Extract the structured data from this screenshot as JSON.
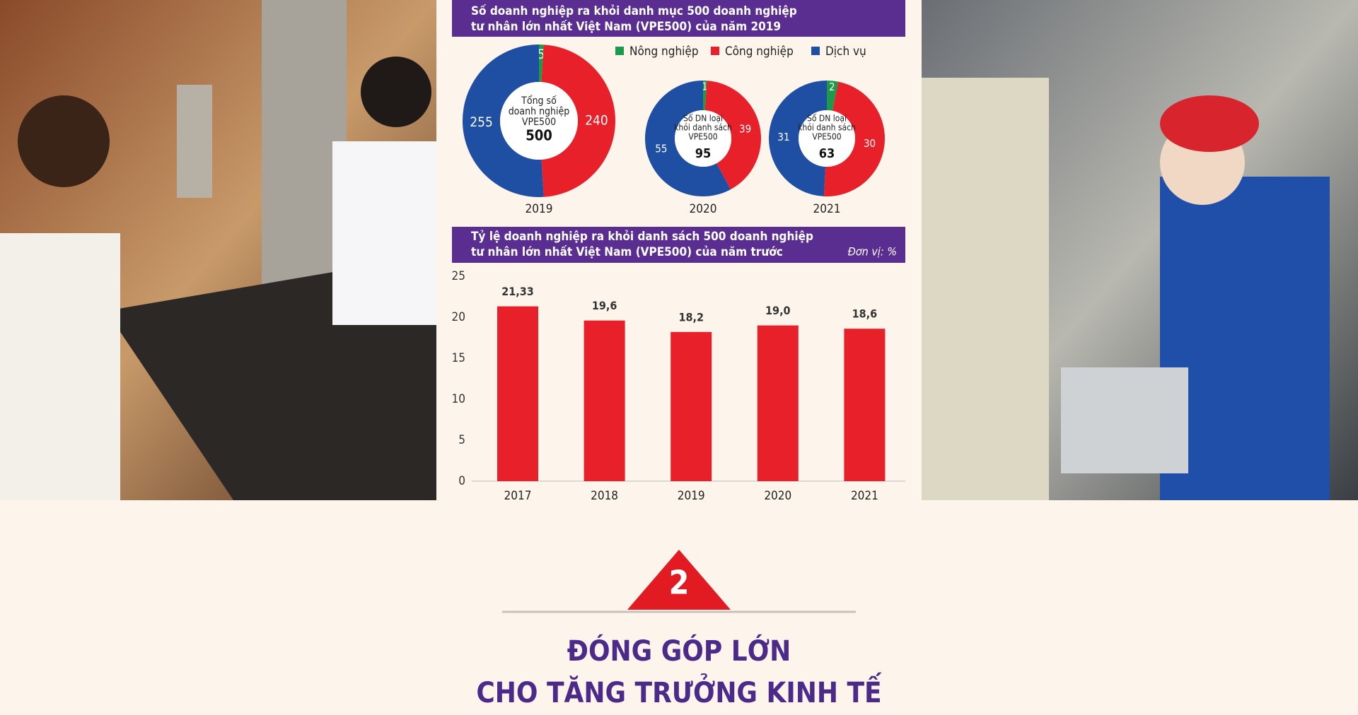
{
  "chart_data": [
    {
      "type": "pie",
      "title": [
        "Số doanh nghiệp ra khỏi danh mục 500 doanh nghiệp",
        "tư nhân lớn nhất Việt Nam (VPE500) của năm 2019"
      ],
      "label": "2019",
      "categories": [
        "Nông nghiệp",
        "Công nghiệp",
        "Dịch vụ"
      ],
      "values": [
        5,
        240,
        255
      ],
      "colors": [
        "#1a9a4a",
        "#e8202a",
        "#1e4fa3"
      ],
      "center_label": [
        "Tổng số",
        "doanh nghiệp",
        "VPE500"
      ],
      "total": 500
    },
    {
      "type": "pie",
      "label": "2020",
      "values": [
        1,
        39,
        55
      ],
      "colors": [
        "#1a9a4a",
        "#e8202a",
        "#1e4fa3"
      ],
      "center_label": [
        "Số DN loại",
        "khỏi danh sách",
        "VPE500"
      ],
      "total": 95
    },
    {
      "type": "pie",
      "label": "2021",
      "values": [
        2,
        30,
        31
      ],
      "colors": [
        "#1a9a4a",
        "#e8202a",
        "#1e4fa3"
      ],
      "center_label": [
        "Số DN loại",
        "khỏi danh sách",
        "VPE500"
      ],
      "total": 63
    },
    {
      "type": "bar",
      "title": [
        "Tỷ lệ doanh nghiệp ra khỏi danh sách  500 doanh nghiệp",
        "tư nhân lớn nhất Việt Nam (VPE500) của năm trước"
      ],
      "unit_note": "Đơn vị: %",
      "categories": [
        "2017",
        "2018",
        "2019",
        "2020",
        "2021"
      ],
      "values": [
        21.33,
        19.6,
        18.2,
        19.0,
        18.6
      ],
      "value_labels": [
        "21,33",
        "19,6",
        "18,2",
        "19,0",
        "18,6"
      ],
      "color": "#e8202a",
      "ylim": [
        0,
        25
      ],
      "yticks": [
        0,
        5,
        10,
        15,
        20,
        25
      ]
    }
  ],
  "section": {
    "number": "2",
    "heading": [
      "ĐÓNG GÓP LỚN",
      "CHO TĂNG TRƯỞNG KINH TẾ"
    ]
  }
}
